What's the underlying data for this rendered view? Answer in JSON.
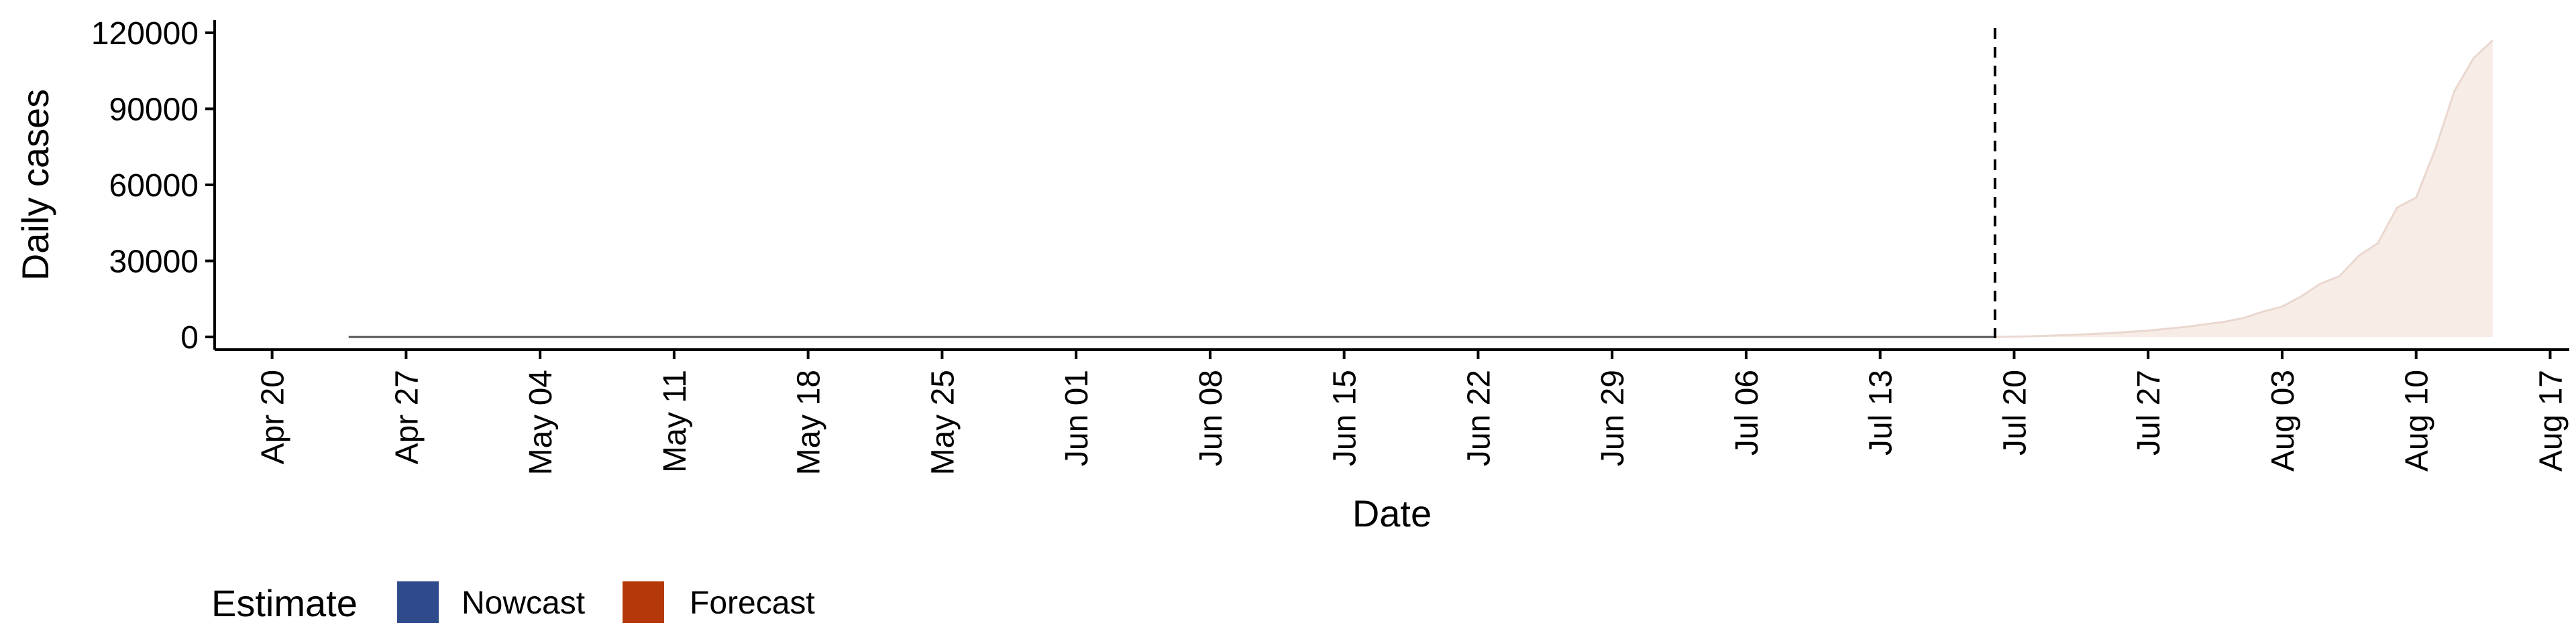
{
  "chart_data": {
    "type": "area",
    "xlabel": "Date",
    "ylabel": "Daily cases",
    "x_axis": {
      "type": "date",
      "range": [
        "2020-04-17",
        "2020-08-18"
      ],
      "ticks": [
        "2020-04-20",
        "2020-04-27",
        "2020-05-04",
        "2020-05-11",
        "2020-05-18",
        "2020-05-25",
        "2020-06-01",
        "2020-06-08",
        "2020-06-15",
        "2020-06-22",
        "2020-06-29",
        "2020-07-06",
        "2020-07-13",
        "2020-07-20",
        "2020-07-27",
        "2020-08-03",
        "2020-08-10",
        "2020-08-17"
      ],
      "tick_labels": [
        "Apr 20",
        "Apr 27",
        "May 04",
        "May 11",
        "May 18",
        "May 25",
        "Jun 01",
        "Jun 08",
        "Jun 15",
        "Jun 22",
        "Jun 29",
        "Jul 06",
        "Jul 13",
        "Jul 20",
        "Jul 27",
        "Aug 03",
        "Aug 10",
        "Aug 17"
      ]
    },
    "y_axis": {
      "range": [
        -5000,
        125000
      ],
      "ticks": [
        0,
        30000,
        60000,
        90000,
        120000
      ],
      "tick_labels": [
        "0",
        "30000",
        "60000",
        "90000",
        "120000"
      ]
    },
    "vertical_line": {
      "date": "2020-07-19",
      "style": "dashed"
    },
    "nowcast": {
      "dates": [
        "2020-04-24",
        "2020-07-19"
      ],
      "values": [
        0,
        0
      ]
    },
    "forecast": {
      "dates": [
        "2020-07-19",
        "2020-07-21",
        "2020-07-23",
        "2020-07-25",
        "2020-07-27",
        "2020-07-29",
        "2020-07-31",
        "2020-08-01",
        "2020-08-02",
        "2020-08-03",
        "2020-08-04",
        "2020-08-05",
        "2020-08-06",
        "2020-08-07",
        "2020-08-08",
        "2020-08-09",
        "2020-08-10",
        "2020-08-11",
        "2020-08-12",
        "2020-08-13",
        "2020-08-14"
      ],
      "values": [
        0,
        300,
        800,
        1500,
        2500,
        4000,
        6000,
        7500,
        10000,
        12000,
        16000,
        21000,
        24000,
        32000,
        37000,
        51000,
        55000,
        74000,
        97000,
        110000,
        117000
      ]
    },
    "legend": {
      "title": "Estimate",
      "position": "bottom-left",
      "items": [
        {
          "label": "Nowcast",
          "color": "#2f4b8c"
        },
        {
          "label": "Forecast",
          "color": "#b5380a"
        }
      ]
    },
    "colors": {
      "forecast_fill": "#f8ece6",
      "forecast_line": "#ead8d0",
      "nowcast_line": "#555555",
      "axis": "#000000"
    },
    "grid": false
  }
}
